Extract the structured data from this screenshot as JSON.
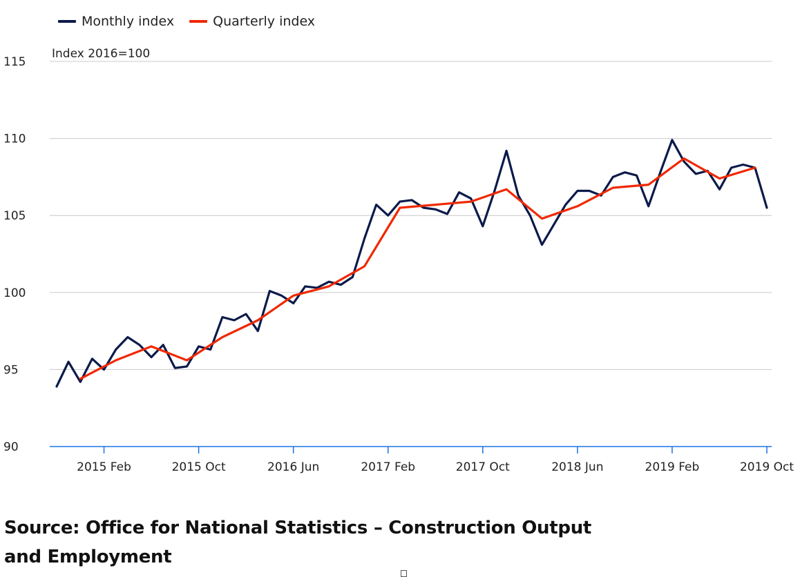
{
  "chart_data": {
    "type": "line",
    "ylabel": "Index 2016=100",
    "ylim": [
      90,
      115
    ],
    "yticks": [
      90,
      95,
      100,
      105,
      110,
      115
    ],
    "grid": true,
    "legend_position": "top-left",
    "x_start": "2014 Oct",
    "x_end": "2019 Oct",
    "xticks": [
      {
        "label": "2015 Feb",
        "month": 4
      },
      {
        "label": "2015 Oct",
        "month": 12
      },
      {
        "label": "2016 Jun",
        "month": 20
      },
      {
        "label": "2017 Feb",
        "month": 28
      },
      {
        "label": "2017 Oct",
        "month": 36
      },
      {
        "label": "2018 Jun",
        "month": 44
      },
      {
        "label": "2019 Feb",
        "month": 52
      },
      {
        "label": "2019 Oct",
        "month": 60
      }
    ],
    "series": [
      {
        "name": "Monthly index",
        "color": "#0b1a4a",
        "x": [
          0,
          1,
          2,
          3,
          4,
          5,
          6,
          7,
          8,
          9,
          10,
          11,
          12,
          13,
          14,
          15,
          16,
          17,
          18,
          19,
          20,
          21,
          22,
          23,
          24,
          25,
          26,
          27,
          28,
          29,
          30,
          31,
          32,
          33,
          34,
          35,
          36,
          37,
          38,
          39,
          40,
          41,
          42,
          43,
          44,
          45,
          46,
          47,
          48,
          49,
          50,
          51,
          52,
          53,
          54,
          55,
          56,
          57,
          58,
          59,
          60
        ],
        "values": [
          93.9,
          95.5,
          94.2,
          95.7,
          95.0,
          96.3,
          97.1,
          96.6,
          95.8,
          96.6,
          95.1,
          95.2,
          96.5,
          96.3,
          98.4,
          98.2,
          98.6,
          97.5,
          100.1,
          99.8,
          99.3,
          100.4,
          100.3,
          100.7,
          100.5,
          101.0,
          103.5,
          105.7,
          105.0,
          105.9,
          106.0,
          105.5,
          105.4,
          105.1,
          106.5,
          106.1,
          104.3,
          106.6,
          109.2,
          106.3,
          105.0,
          103.1,
          104.4,
          105.7,
          106.6,
          106.6,
          106.3,
          107.5,
          107.8,
          107.6,
          105.6,
          107.8,
          109.9,
          108.5,
          107.7,
          107.9,
          106.7,
          108.1,
          108.3,
          108.1,
          105.5
        ]
      },
      {
        "name": "Quarterly index",
        "color": "#f02800",
        "x": [
          2,
          5,
          8,
          11,
          14,
          17,
          20,
          23,
          26,
          29,
          32,
          35,
          38,
          41,
          44,
          47,
          50,
          53,
          56,
          59
        ],
        "values": [
          94.4,
          95.6,
          96.5,
          95.6,
          97.1,
          98.2,
          99.8,
          100.4,
          101.7,
          105.5,
          105.7,
          105.9,
          106.7,
          104.8,
          105.6,
          106.8,
          107.0,
          108.7,
          107.4,
          108.1
        ]
      }
    ]
  },
  "source": {
    "text": "Source: Office for National Statistics – Construction Output and Employment"
  }
}
